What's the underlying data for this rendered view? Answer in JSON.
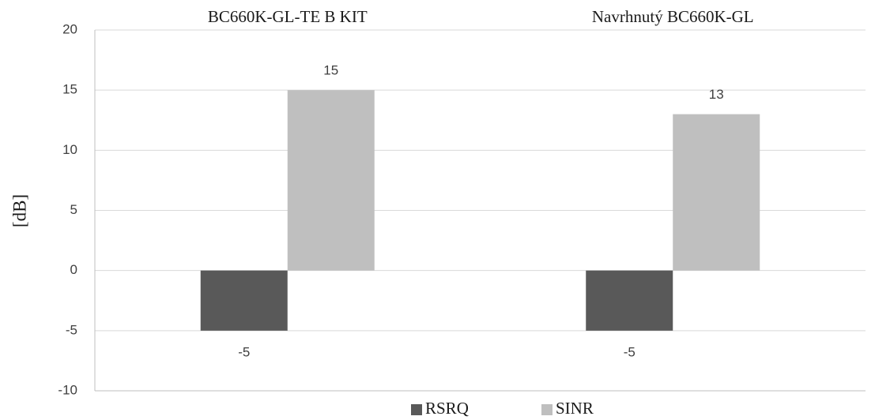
{
  "chart_data": {
    "type": "bar",
    "categories": [
      "BC660K-GL-TE B KIT",
      "Navrhnutý BC660K-GL"
    ],
    "series": [
      {
        "name": "RSRQ",
        "values": [
          -5,
          -5
        ],
        "color": "#595959"
      },
      {
        "name": "SINR",
        "values": [
          15,
          13
        ],
        "color": "#bfbfbf"
      }
    ],
    "ylabel": "[dB]",
    "ylim": [
      -10,
      20
    ],
    "yticks": [
      -10,
      -5,
      0,
      5,
      10,
      15,
      20
    ],
    "grid": true,
    "legend": "bottom",
    "category_labels_position": "top"
  }
}
